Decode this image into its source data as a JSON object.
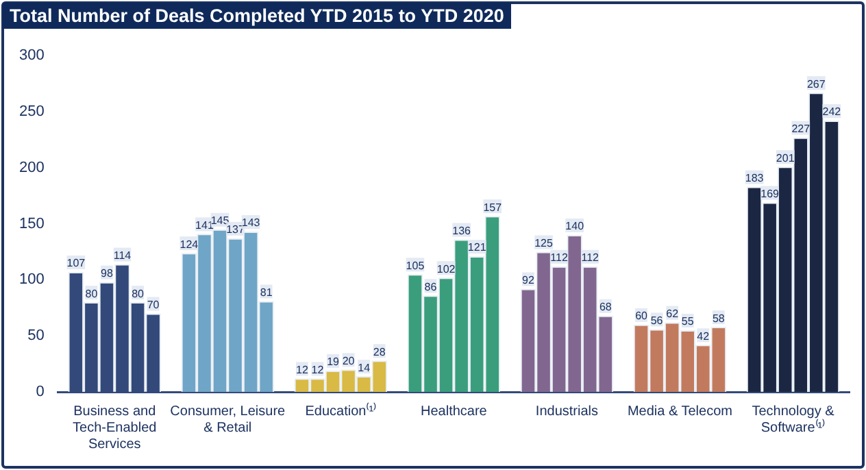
{
  "chart_data": {
    "type": "bar",
    "title": "Total Number of Deals Completed YTD 2015 to YTD 2020",
    "categories": [
      "Business and Tech-Enabled Services",
      "Consumer, Leisure & Retail",
      "Education⁽¹⁾",
      "Healthcare",
      "Industrials",
      "Media & Telecom",
      "Technology & Software⁽¹⁾"
    ],
    "series": [
      {
        "colors": [
          "#32497a",
          "#6fa5c6",
          "#d8ba45",
          "#3a9e7c",
          "#81678f",
          "#c27a5e",
          "#1b2742"
        ],
        "values": [
          107,
          124,
          12,
          105,
          92,
          60,
          183
        ]
      },
      {
        "colors": [
          "#32497a",
          "#6fa5c6",
          "#d8ba45",
          "#3a9e7c",
          "#81678f",
          "#c27a5e",
          "#1b2742"
        ],
        "values": [
          80,
          141,
          12,
          86,
          125,
          56,
          169
        ]
      },
      {
        "colors": [
          "#32497a",
          "#6fa5c6",
          "#d8ba45",
          "#3a9e7c",
          "#81678f",
          "#c27a5e",
          "#1b2742"
        ],
        "values": [
          98,
          145,
          19,
          102,
          112,
          62,
          201
        ]
      },
      {
        "colors": [
          "#32497a",
          "#6fa5c6",
          "#d8ba45",
          "#3a9e7c",
          "#81678f",
          "#c27a5e",
          "#1b2742"
        ],
        "values": [
          114,
          137,
          20,
          136,
          140,
          55,
          227
        ]
      },
      {
        "colors": [
          "#32497a",
          "#6fa5c6",
          "#d8ba45",
          "#3a9e7c",
          "#81678f",
          "#c27a5e",
          "#1b2742"
        ],
        "values": [
          80,
          143,
          14,
          121,
          112,
          42,
          267
        ]
      },
      {
        "colors": [
          "#32497a",
          "#6fa5c6",
          "#d8ba45",
          "#3a9e7c",
          "#81678f",
          "#c27a5e",
          "#1b2742"
        ],
        "values": [
          70,
          81,
          28,
          157,
          68,
          58,
          242
        ]
      }
    ],
    "ylim": [
      0,
      300
    ],
    "yticks": [
      0,
      50,
      100,
      150,
      200,
      250,
      300
    ],
    "grid": false,
    "legend": false,
    "data_labels": true
  }
}
